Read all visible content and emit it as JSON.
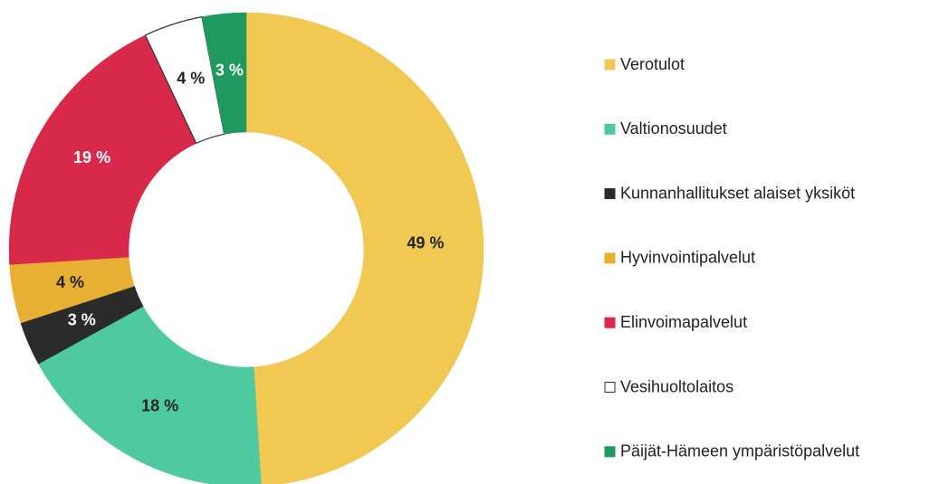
{
  "chart_data": {
    "type": "donut",
    "categories": [
      "Verotulot",
      "Valtionosuudet",
      "Kunnanhallitukset alaiset yksiköt",
      "Hyvinvointipalvelut",
      "Elinvoimapalvelut",
      "Vesihuoltolaitos",
      "Päijät-Hämeen ympäristöpalvelut"
    ],
    "values": [
      49,
      18,
      3,
      4,
      19,
      4,
      3
    ],
    "value_labels": [
      "49 %",
      "18 %",
      "3 %",
      "4 %",
      "19 %",
      "4 %",
      "3 %"
    ],
    "colors": [
      "#f0c852",
      "#4fc9a0",
      "#2b2b2b",
      "#e8b032",
      "#d9294a",
      "#ffffff",
      "#1f9a5e"
    ],
    "legend": "right"
  }
}
